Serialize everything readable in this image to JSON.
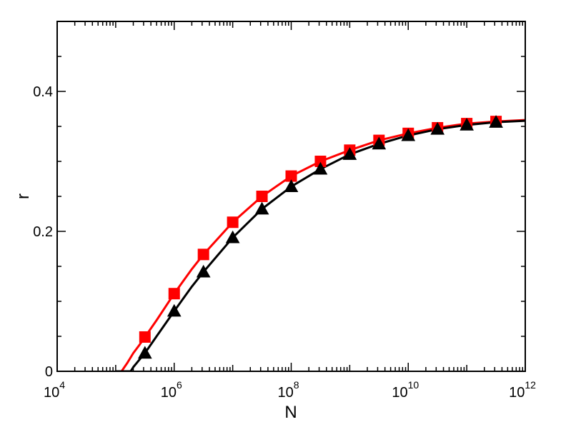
{
  "chart_data": {
    "type": "line",
    "title": "",
    "xlabel": "N",
    "ylabel": "r",
    "x_scale": "log",
    "xlim": [
      10000,
      1000000000000
    ],
    "ylim": [
      0,
      0.5
    ],
    "x_major_ticks": [
      {
        "value": 10000,
        "base": "10",
        "exp": "4"
      },
      {
        "value": 1000000,
        "base": "10",
        "exp": "6"
      },
      {
        "value": 100000000,
        "base": "10",
        "exp": "8"
      },
      {
        "value": 10000000000,
        "base": "10",
        "exp": "10"
      },
      {
        "value": 1000000000000,
        "base": "10",
        "exp": "12"
      }
    ],
    "y_ticks": [
      {
        "value": 0,
        "label": "0"
      },
      {
        "value": 0.2,
        "label": "0.2"
      },
      {
        "value": 0.4,
        "label": "0.4"
      }
    ],
    "grid": false,
    "legend": "none",
    "series": [
      {
        "marker": "square",
        "color": "#ff0000",
        "x": [
          316228,
          1000000,
          3162278,
          10000000,
          31622777,
          100000000,
          316227766,
          1000000000,
          3162277660,
          10000000000,
          31622776602,
          100000000000,
          316227766017
        ],
        "y": [
          0.049,
          0.111,
          0.167,
          0.213,
          0.25,
          0.279,
          0.3,
          0.316,
          0.33,
          0.34,
          0.348,
          0.354,
          0.357
        ]
      },
      {
        "marker": "triangle",
        "color": "#000000",
        "x": [
          316228,
          1000000,
          3162278,
          10000000,
          31622777,
          100000000,
          316227766,
          1000000000,
          3162277660,
          10000000000,
          31622776602,
          100000000000,
          316227766017
        ],
        "y": [
          0.026,
          0.086,
          0.142,
          0.191,
          0.232,
          0.264,
          0.289,
          0.31,
          0.325,
          0.337,
          0.346,
          0.352,
          0.356
        ]
      }
    ],
    "fit_curves": [
      {
        "color": "#ff0000",
        "x": [
          100000,
          126000,
          158000,
          200000,
          251000,
          316228,
          500000,
          1000000,
          2000000,
          3162278,
          10000000,
          31622777,
          100000000,
          316227766,
          1000000000,
          3162277660,
          10000000000,
          31622776602,
          100000000000,
          316227766017,
          1000000000000
        ],
        "y": [
          0.0,
          0.0,
          0.012,
          0.026,
          0.037,
          0.049,
          0.073,
          0.111,
          0.146,
          0.167,
          0.213,
          0.25,
          0.279,
          0.3,
          0.316,
          0.33,
          0.34,
          0.348,
          0.354,
          0.357,
          0.359
        ]
      },
      {
        "color": "#000000",
        "x": [
          100000,
          150000,
          180000,
          200000,
          251000,
          316228,
          500000,
          1000000,
          2000000,
          3162278,
          10000000,
          31622777,
          100000000,
          316227766,
          1000000000,
          3162277660,
          10000000000,
          31622776602,
          100000000000,
          316227766017,
          1000000000000
        ],
        "y": [
          0.0,
          0.0,
          0.0,
          0.006,
          0.016,
          0.026,
          0.05,
          0.086,
          0.121,
          0.142,
          0.191,
          0.232,
          0.264,
          0.289,
          0.31,
          0.325,
          0.337,
          0.346,
          0.352,
          0.356,
          0.358
        ]
      }
    ]
  }
}
